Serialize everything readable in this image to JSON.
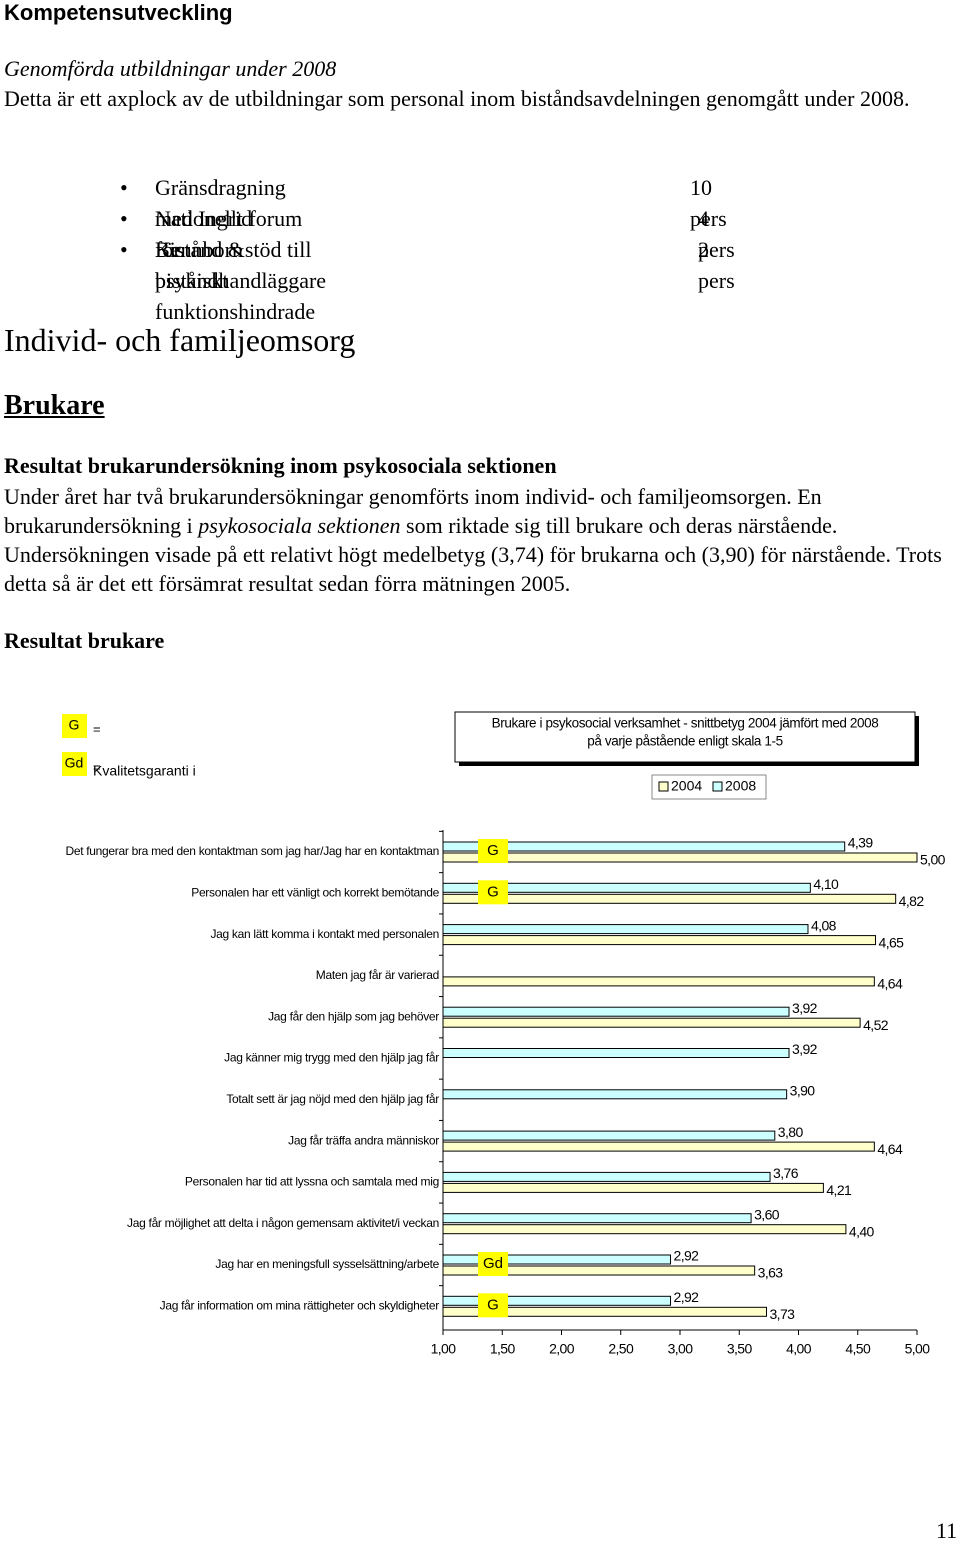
{
  "header": {
    "title": "Kompetensutveckling"
  },
  "training": {
    "subtitle": "Genomförda utbildningar under 2008",
    "text": "Detta är ett axplock av de utbildningar som personal inom biståndsavdelningen genomgått under 2008.",
    "items": [
      {
        "label": "Gränsdragning med Ingrid Kennborn",
        "count": "10 pers"
      },
      {
        "label": "Nationellt forum för biståndhandläggare",
        "count": "4 pers"
      },
      {
        "label": "Bistånd &stöd till psykiskt funktionshindrade",
        "count": "2 pers"
      }
    ]
  },
  "section": {
    "heading": "Individ- och familjeomsorg",
    "subheading": "Brukare",
    "title": "Resultat brukarundersökning inom psykosociala sektionen",
    "paragraph": [
      "Under året har två brukarundersökningar genomförts inom individ- och familjeomsorgen. En brukarundersökning i ",
      "psykosociala sektionen",
      " som riktade sig till brukare och deras närstående. Undersökningen visade på ett relativt högt medelbetyg (3,74) för brukarna och (3,90) för närstående. Trots detta så är det ett försämrat resultat sedan förra mätningen 2005."
    ],
    "result_heading": "Resultat brukare"
  },
  "chart_data": {
    "type": "bar",
    "orientation": "horizontal",
    "title": "Brukare i psykosocial verksamhet - snittbetyg 2004 jämfört med 2008",
    "subtitle": "på varje påstående enligt skala 1-5",
    "categories": [
      "Det fungerar bra med den kontaktman som jag har/Jag har en kontaktman",
      "Personalen har ett vänligt och korrekt bemötande",
      "Jag kan lätt komma i kontakt med personalen",
      "Maten jag får är varierad",
      "Jag får den hjälp som jag behöver",
      "Jag känner mig trygg med den hjälp jag får",
      "Totalt sett är jag nöjd med den hjälp jag får",
      "Jag får träffa andra människor",
      "Personalen har tid att lyssna och samtala med mig",
      "Jag får möjlighet att delta i någon gemensam aktivitet/i veckan",
      "Jag har en meningsfull sysselsättning/arbete",
      "Jag får information om mina rättigheter och skyldigheter"
    ],
    "series": [
      {
        "name": "2004",
        "color": "#ffffcc",
        "values": [
          5.0,
          4.82,
          4.65,
          4.64,
          4.52,
          null,
          null,
          4.64,
          4.21,
          4.4,
          3.63,
          3.73
        ],
        "value_labels": [
          "5,00",
          "4,82",
          "4,65",
          "4,64",
          "4,52",
          null,
          null,
          "4,64",
          "4,21",
          "4,40",
          "3,63",
          "3,73"
        ]
      },
      {
        "name": "2008",
        "color": "#ccffff",
        "values": [
          4.39,
          4.1,
          4.08,
          null,
          3.92,
          3.92,
          3.9,
          3.8,
          3.76,
          3.6,
          2.92,
          2.92
        ],
        "value_labels": [
          "4,39",
          "4,10",
          "4,08",
          null,
          "3,92",
          "3,92",
          "3,90",
          "3,80",
          "3,76",
          "3,60",
          "2,92",
          "2,92"
        ]
      }
    ],
    "markers": [
      "G",
      "G",
      null,
      null,
      null,
      null,
      null,
      null,
      null,
      null,
      "Gd",
      "G"
    ],
    "marker_color": "#ffff00",
    "key": {
      "items": [
        {
          "code": "G",
          "text": "="
        },
        {
          "code": "Gd",
          "text": "="
        }
      ],
      "note": "Kvalitetsgaranti i"
    },
    "xlim": [
      1,
      5
    ],
    "xticks": [
      {
        "value": 1,
        "label": "1,00"
      },
      {
        "value": 1.5,
        "label": "1,50"
      },
      {
        "value": 2,
        "label": "2,00"
      },
      {
        "value": 2.5,
        "label": "2,50"
      },
      {
        "value": 3,
        "label": "3,00"
      },
      {
        "value": 3.5,
        "label": "3,50"
      },
      {
        "value": 4,
        "label": "4,00"
      },
      {
        "value": 4.5,
        "label": "4,50"
      },
      {
        "value": 5,
        "label": "5,00"
      }
    ]
  },
  "page_number": "11"
}
